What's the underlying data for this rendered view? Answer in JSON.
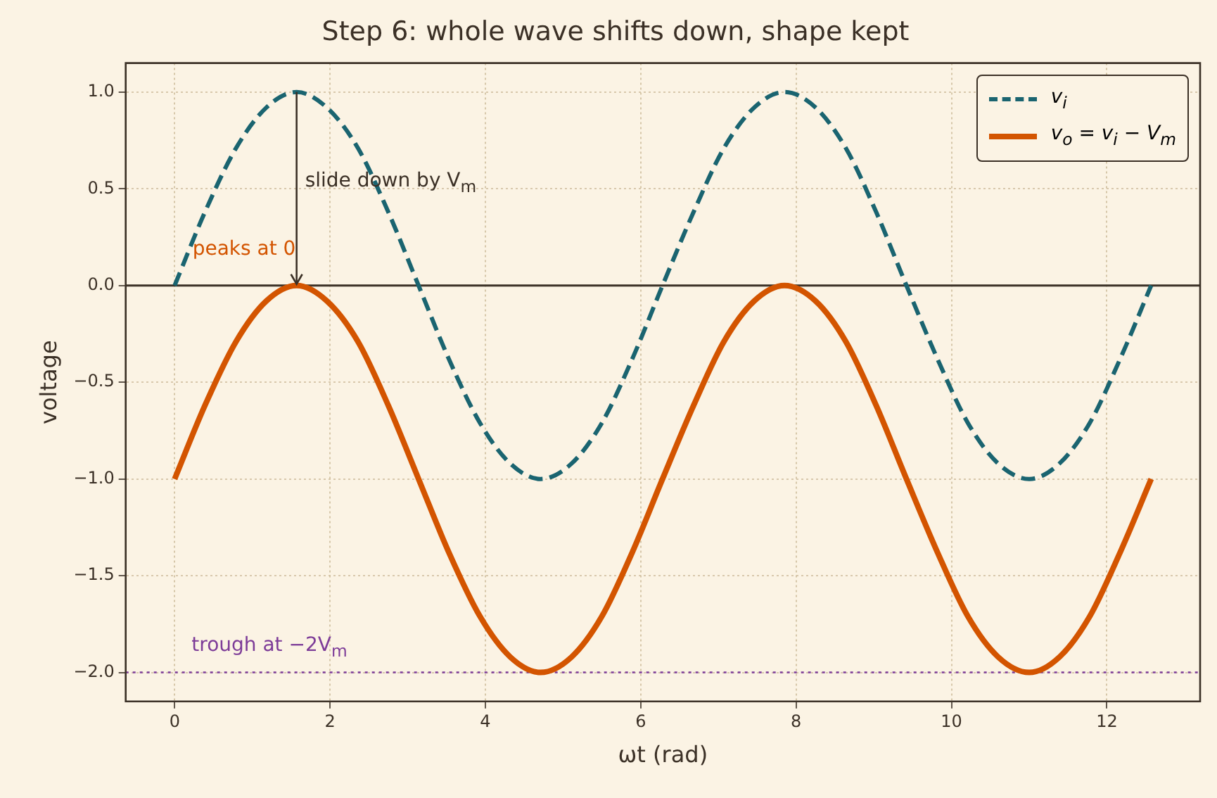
{
  "chart_data": {
    "type": "line",
    "title": "Step 6: whole wave shifts down, shape kept",
    "xlabel": "ωt (rad)",
    "ylabel": "voltage",
    "x": [
      0,
      0.39,
      0.79,
      1.18,
      1.57,
      1.96,
      2.36,
      2.75,
      3.14,
      3.53,
      3.93,
      4.32,
      4.71,
      5.11,
      5.5,
      5.89,
      6.28,
      6.68,
      7.07,
      7.46,
      7.85,
      8.25,
      8.64,
      9.03,
      9.42,
      9.82,
      10.21,
      10.6,
      11.0,
      11.39,
      11.78,
      12.17,
      12.57
    ],
    "series": [
      {
        "name": "v$_{i}$",
        "color": "#1a6470",
        "line_style": "dashed",
        "values": [
          0,
          0.38,
          0.71,
          0.92,
          1,
          0.92,
          0.71,
          0.38,
          0,
          -0.38,
          -0.71,
          -0.92,
          -1,
          -0.92,
          -0.71,
          -0.38,
          0,
          0.38,
          0.71,
          0.92,
          1,
          0.92,
          0.71,
          0.38,
          0,
          -0.38,
          -0.71,
          -0.92,
          -1,
          -0.92,
          -0.71,
          -0.38,
          0
        ]
      },
      {
        "name": "v$_{o}$ = v$_{i}$ − V$_{m}$",
        "color": "#d35400",
        "line_style": "solid",
        "values": [
          -1,
          -0.62,
          -0.29,
          -0.08,
          0,
          -0.08,
          -0.29,
          -0.62,
          -1,
          -1.38,
          -1.71,
          -1.92,
          -2,
          -1.92,
          -1.71,
          -1.38,
          -1,
          -0.62,
          -0.29,
          -0.08,
          0,
          -0.08,
          -0.29,
          -0.62,
          -1,
          -1.38,
          -1.71,
          -1.92,
          -2,
          -1.92,
          -1.71,
          -1.38,
          -1
        ]
      }
    ],
    "xlim": [
      -0.63,
      13.2
    ],
    "xticks": [
      0,
      2,
      4,
      6,
      8,
      10,
      12
    ],
    "ylim": [
      -2.15,
      1.15
    ],
    "yticks": [
      {
        "value": -2,
        "label": "−2.0"
      },
      {
        "value": -1.5,
        "label": "−1.5"
      },
      {
        "value": -1,
        "label": "−1.0"
      },
      {
        "value": -0.5,
        "label": "−0.5"
      },
      {
        "value": 0,
        "label": "0.0"
      },
      {
        "value": 0.5,
        "label": "0.5"
      },
      {
        "value": 1,
        "label": "1.0"
      }
    ],
    "ref_lines": [
      {
        "axis": "y",
        "value": 0,
        "color": "#3b3026",
        "line_style": "solid"
      },
      {
        "axis": "y",
        "value": -2,
        "color": "#7d3c98",
        "line_style": "dotted"
      }
    ],
    "annotations": [
      "slide down by V$_{m}$",
      {
        "text": "peaks at 0",
        "x": 1.57,
        "y": 0
      },
      "trough at −2V$_{m}$"
    ],
    "grid": true,
    "legend": "top right",
    "marker": "none"
  }
}
